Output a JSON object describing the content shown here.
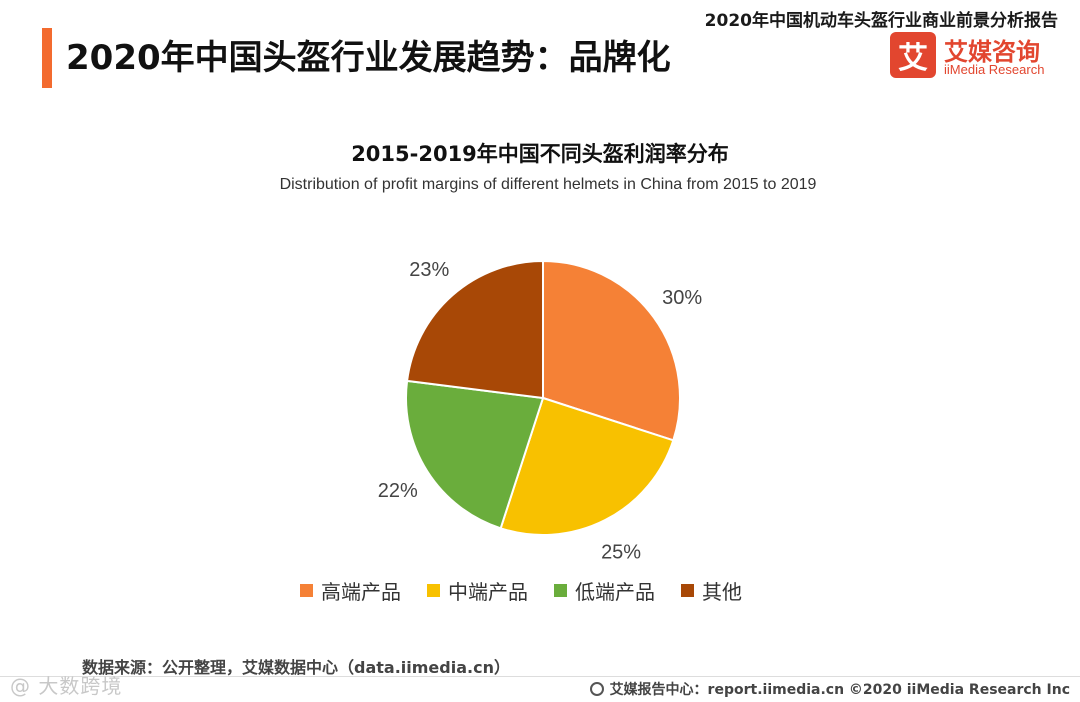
{
  "header": {
    "report_title": "2020年中国机动车头盔行业商业前景分析报告",
    "page_title": "2020年中国头盔行业发展趋势：品牌化",
    "logo_mark": "艾",
    "logo_cn": "艾媒咨询",
    "logo_en": "iiMedia Research"
  },
  "chart_data": {
    "type": "pie",
    "title": "2015-2019年中国不同头盔利润率分布",
    "subtitle": "Distribution of profit margins of different helmets in China from 2015 to 2019",
    "categories": [
      "高端产品",
      "中端产品",
      "低端产品",
      "其他"
    ],
    "values": [
      30,
      25,
      22,
      23
    ],
    "labels": [
      "30%",
      "25%",
      "22%",
      "23%"
    ],
    "colors": [
      "#f58136",
      "#f8c100",
      "#6aad3c",
      "#a84806"
    ],
    "legend_position": "bottom"
  },
  "footer": {
    "source": "数据来源：公开整理，艾媒数据中心（data.iimedia.cn）",
    "credit": "艾媒报告中心：report.iimedia.cn  ©2020  iiMedia Research  Inc",
    "watermark": "@ 大数跨境"
  }
}
